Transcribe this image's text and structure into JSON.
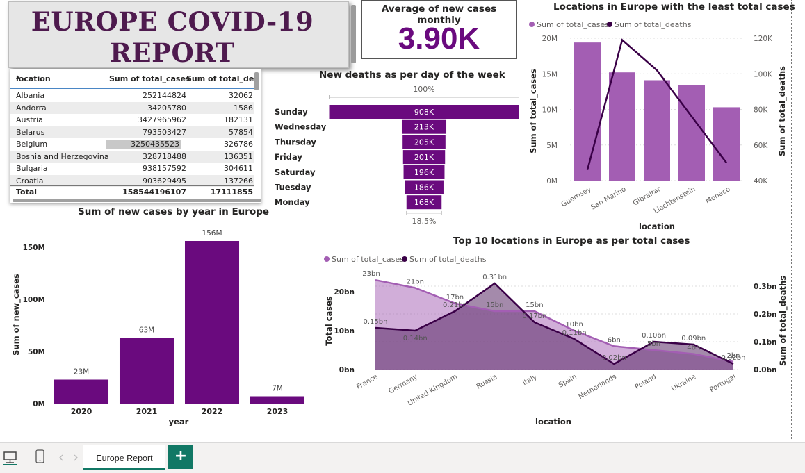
{
  "report": {
    "title_line1": "EUROPE COVID-19",
    "title_line2": "REPORT",
    "colors": {
      "accent": "#6a0a7e",
      "light_accent": "#a35eb3",
      "title_text": "#4e1a4e",
      "deaths_line": "#3a0047"
    }
  },
  "kpi": {
    "label": "Average of new cases monthly",
    "value": "3.90K"
  },
  "table": {
    "columns": [
      "location",
      "Sum of total_cases",
      "Sum of total_deat"
    ],
    "rows": [
      [
        "Albania",
        "252144824",
        "32062"
      ],
      [
        "Andorra",
        "34205780",
        "1586"
      ],
      [
        "Austria",
        "3427965962",
        "182131"
      ],
      [
        "Belarus",
        "793503427",
        "57854"
      ],
      [
        "Belgium",
        "3250435523",
        "326786"
      ],
      [
        "Bosnia and Herzegovina",
        "328718488",
        "136351"
      ],
      [
        "Bulgaria",
        "938157592",
        "304611"
      ],
      [
        "Croatia",
        "903629495",
        "137266"
      ]
    ],
    "total": [
      "Total",
      "158544196107",
      "17111855"
    ]
  },
  "funnel": {
    "title": "New deaths as per day of the week",
    "top_pct": "100%",
    "bottom_pct": "18.5%",
    "categories": [
      "Sunday",
      "Wednesday",
      "Thursday",
      "Friday",
      "Saturday",
      "Tuesday",
      "Monday"
    ],
    "values": [
      908,
      213,
      205,
      201,
      196,
      186,
      168
    ],
    "labels": [
      "908K",
      "213K",
      "205K",
      "201K",
      "196K",
      "186K",
      "168K"
    ]
  },
  "least": {
    "title": "Locations in Europe with the least total cases",
    "legend": [
      "Sum of total_cases",
      "Sum of total_deaths"
    ],
    "ylabel_left": "Sum of total_cases",
    "ylabel_right": "Sum of total_deaths",
    "xlabel": "location",
    "left_ticks": [
      "20M",
      "15M",
      "10M",
      "5M",
      "0M"
    ],
    "right_ticks": [
      "120K",
      "100K",
      "80K",
      "60K",
      "40K"
    ]
  },
  "yearly": {
    "title": "Sum of new cases by year in Europe",
    "xlabel": "year",
    "ylabel": "Sum of new_cases",
    "ticks": [
      "150M",
      "100M",
      "50M",
      "0M"
    ]
  },
  "top10": {
    "title": "Top 10 locations in Europe as per total cases",
    "legend": [
      "Sum of total_cases",
      "Sum of total_deaths"
    ],
    "ylabel_left": "Total cases",
    "ylabel_right": "Sum of total_deaths",
    "xlabel": "location",
    "left_ticks": [
      "20bn",
      "10bn",
      "0bn"
    ],
    "right_ticks": [
      "0.3bn",
      "0.2bn",
      "0.1bn",
      "0.0bn"
    ]
  },
  "chart_data": [
    {
      "type": "bar",
      "title": "New deaths as per day of the week",
      "categories": [
        "Sunday",
        "Wednesday",
        "Thursday",
        "Friday",
        "Saturday",
        "Tuesday",
        "Monday"
      ],
      "values": [
        908000,
        213000,
        205000,
        201000,
        196000,
        186000,
        168000
      ]
    },
    {
      "type": "bar",
      "title": "Locations in Europe with the least total cases",
      "categories": [
        "Guernsey",
        "San Marino",
        "Gibraltar",
        "Liechtenstein",
        "Monaco"
      ],
      "series": [
        {
          "name": "Sum of total_cases",
          "type": "bar",
          "axis": "left",
          "values": [
            19400000,
            15200000,
            14100000,
            13400000,
            10300000
          ]
        },
        {
          "name": "Sum of total_deaths",
          "type": "line",
          "axis": "right",
          "values": [
            46000,
            119000,
            102000,
            76000,
            50000
          ]
        }
      ],
      "xlabel": "location",
      "ylabel": "Sum of total_cases",
      "y2label": "Sum of total_deaths",
      "ylim": [
        0,
        20000000
      ],
      "y2lim": [
        40000,
        120000
      ]
    },
    {
      "type": "bar",
      "title": "Sum of new cases by year in Europe",
      "categories": [
        "2020",
        "2021",
        "2022",
        "2023"
      ],
      "values": [
        23000000,
        63000000,
        156000000,
        7000000
      ],
      "labels": [
        "23M",
        "63M",
        "156M",
        "7M"
      ],
      "xlabel": "year",
      "ylabel": "Sum of new_cases",
      "ylim": [
        0,
        160000000
      ]
    },
    {
      "type": "area",
      "title": "Top 10 locations in Europe as per total cases",
      "categories": [
        "France",
        "Germany",
        "United Kingdom",
        "Russia",
        "Italy",
        "Spain",
        "Netherlands",
        "Poland",
        "Ukraine",
        "Portugal"
      ],
      "series": [
        {
          "name": "Sum of total_cases",
          "type": "area",
          "axis": "left",
          "values": [
            23,
            21,
            17,
            15,
            15,
            10,
            6,
            5,
            4,
            2
          ],
          "labels": [
            "23bn",
            "21bn",
            "17bn",
            "15bn",
            "15bn",
            "10bn",
            "6bn",
            "5bn",
            "4bn",
            "2bn"
          ]
        },
        {
          "name": "Sum of total_deaths",
          "type": "line",
          "axis": "right",
          "values": [
            0.15,
            0.14,
            0.21,
            0.31,
            0.17,
            0.11,
            0.02,
            0.1,
            0.09,
            0.02
          ],
          "labels": [
            "0.15bn",
            "0.14bn",
            "0.21bn",
            "0.31bn",
            "0.17bn",
            "0.11bn",
            "0.02bn",
            "0.10bn",
            "0.09bn",
            "0.02bn"
          ]
        }
      ],
      "xlabel": "location",
      "ylabel": "Total cases",
      "y2label": "Sum of total_deaths",
      "ylim": [
        0,
        25
      ],
      "y2lim": [
        0,
        0.35
      ]
    }
  ],
  "tabs": {
    "page_tab": "Europe Report",
    "add_label": "+"
  }
}
